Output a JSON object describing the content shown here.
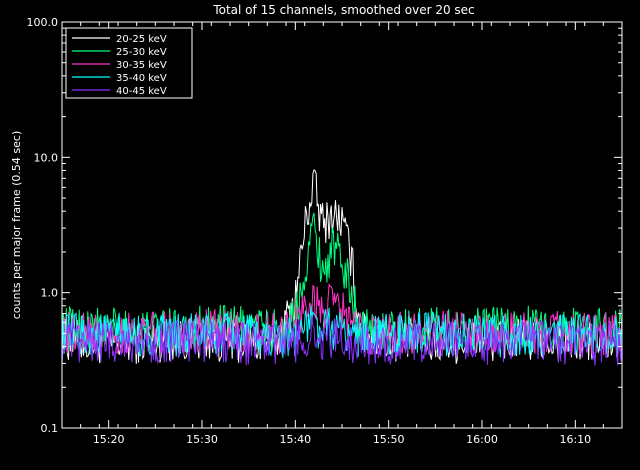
{
  "chart_data": {
    "type": "line",
    "title": "Total of 15 channels, smoothed over 20 sec",
    "xlabel": "",
    "ylabel": "counts per major frame (0.54 sec)",
    "y_scale": "log",
    "ylim": [
      0.1,
      100.0
    ],
    "xlim": [
      "15:15",
      "16:15"
    ],
    "y_ticks": [
      "0.1",
      "1.0",
      "10.0",
      "100.0"
    ],
    "x_ticks": [
      "15:20",
      "15:30",
      "15:40",
      "15:50",
      "16:00",
      "16:10"
    ],
    "legend_position": "top-left",
    "grid": false,
    "series": [
      {
        "name": "20-25 keV",
        "color": "#ffffff",
        "x": [
          "15:15",
          "15:20",
          "15:25",
          "15:30",
          "15:35",
          "15:38",
          "15:40",
          "15:41",
          "15:42",
          "15:42.5",
          "15:43",
          "15:44",
          "15:45",
          "15:46",
          "15:47",
          "15:50",
          "15:55",
          "16:00",
          "16:05",
          "16:10",
          "16:15"
        ],
        "y": [
          0.45,
          0.42,
          0.44,
          0.46,
          0.43,
          0.42,
          0.9,
          3.0,
          6.8,
          4.0,
          3.2,
          3.8,
          3.4,
          1.8,
          0.5,
          0.45,
          0.43,
          0.44,
          0.45,
          0.43,
          0.44
        ]
      },
      {
        "name": "25-30 keV",
        "color": "#00ff7f",
        "x": [
          "15:15",
          "15:20",
          "15:25",
          "15:30",
          "15:35",
          "15:38",
          "15:40",
          "15:41",
          "15:42",
          "15:42.5",
          "15:43",
          "15:44",
          "15:45",
          "15:46",
          "15:47",
          "15:50",
          "15:55",
          "16:00",
          "16:05",
          "16:10",
          "16:15"
        ],
        "y": [
          0.55,
          0.55,
          0.52,
          0.57,
          0.55,
          0.52,
          0.65,
          1.5,
          3.3,
          2.0,
          1.4,
          2.2,
          1.7,
          1.0,
          0.55,
          0.53,
          0.55,
          0.54,
          0.55,
          0.55,
          0.54
        ]
      },
      {
        "name": "30-35 keV",
        "color": "#ff33cc",
        "x": [
          "15:15",
          "15:20",
          "15:25",
          "15:30",
          "15:35",
          "15:38",
          "15:40",
          "15:41",
          "15:42",
          "15:42.5",
          "15:43",
          "15:44",
          "15:45",
          "15:46",
          "15:47",
          "15:50",
          "15:55",
          "16:00",
          "16:05",
          "16:10",
          "16:15"
        ],
        "y": [
          0.5,
          0.52,
          0.5,
          0.53,
          0.5,
          0.5,
          0.55,
          0.8,
          0.95,
          0.75,
          0.7,
          0.85,
          0.75,
          0.6,
          0.5,
          0.5,
          0.52,
          0.5,
          0.51,
          0.5,
          0.5
        ]
      },
      {
        "name": "35-40 keV",
        "color": "#00ffff",
        "x": [
          "15:15",
          "15:20",
          "15:25",
          "15:30",
          "15:35",
          "15:38",
          "15:40",
          "15:41",
          "15:42",
          "15:42.5",
          "15:43",
          "15:44",
          "15:45",
          "15:46",
          "15:47",
          "15:50",
          "15:55",
          "16:00",
          "16:05",
          "16:10",
          "16:15"
        ],
        "y": [
          0.48,
          0.5,
          0.47,
          0.5,
          0.48,
          0.47,
          0.5,
          0.55,
          0.6,
          0.55,
          0.52,
          0.55,
          0.52,
          0.5,
          0.48,
          0.48,
          0.5,
          0.48,
          0.49,
          0.48,
          0.48
        ]
      },
      {
        "name": "40-45 keV",
        "color": "#8833ff",
        "x": [
          "15:15",
          "15:20",
          "15:25",
          "15:30",
          "15:35",
          "15:38",
          "15:40",
          "15:41",
          "15:42",
          "15:42.5",
          "15:43",
          "15:44",
          "15:45",
          "15:46",
          "15:47",
          "15:50",
          "15:55",
          "16:00",
          "16:05",
          "16:10",
          "16:15"
        ],
        "y": [
          0.42,
          0.44,
          0.43,
          0.44,
          0.42,
          0.42,
          0.44,
          0.46,
          0.48,
          0.46,
          0.45,
          0.46,
          0.45,
          0.44,
          0.42,
          0.42,
          0.43,
          0.42,
          0.43,
          0.42,
          0.42
        ]
      }
    ]
  }
}
